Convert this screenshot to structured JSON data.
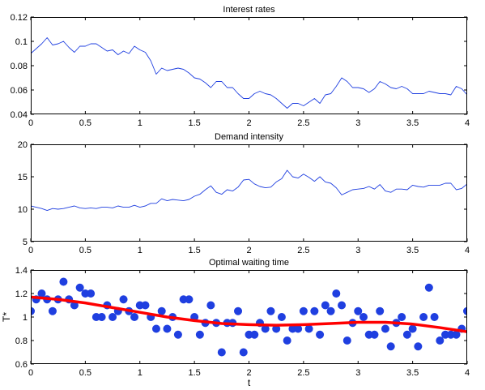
{
  "chart_data": [
    {
      "type": "line",
      "title": "Interest rates",
      "xlabel": "",
      "ylabel": "",
      "xlim": [
        0,
        4
      ],
      "ylim": [
        0.04,
        0.12
      ],
      "xticks": [
        "0",
        "0.5",
        "1",
        "1.5",
        "2",
        "2.5",
        "3",
        "3.5",
        "4"
      ],
      "yticks": [
        "0.04",
        "0.06",
        "0.08",
        "0.1",
        "0.12"
      ],
      "grid": false,
      "series": [
        {
          "color": "#1f3fe0",
          "x": [
            0,
            0.05,
            0.1,
            0.15,
            0.2,
            0.25,
            0.3,
            0.35,
            0.4,
            0.45,
            0.5,
            0.55,
            0.6,
            0.65,
            0.7,
            0.75,
            0.8,
            0.85,
            0.9,
            0.95,
            1.0,
            1.05,
            1.1,
            1.15,
            1.2,
            1.25,
            1.3,
            1.35,
            1.4,
            1.45,
            1.5,
            1.55,
            1.6,
            1.65,
            1.7,
            1.75,
            1.8,
            1.85,
            1.9,
            1.95,
            2.0,
            2.05,
            2.1,
            2.15,
            2.2,
            2.25,
            2.3,
            2.35,
            2.4,
            2.45,
            2.5,
            2.55,
            2.6,
            2.65,
            2.7,
            2.75,
            2.8,
            2.85,
            2.9,
            2.95,
            3.0,
            3.05,
            3.1,
            3.15,
            3.2,
            3.25,
            3.3,
            3.35,
            3.4,
            3.45,
            3.5,
            3.55,
            3.6,
            3.65,
            3.7,
            3.75,
            3.8,
            3.85,
            3.9,
            3.95,
            4.0
          ],
          "y": [
            0.09,
            0.094,
            0.098,
            0.103,
            0.097,
            0.098,
            0.1,
            0.095,
            0.091,
            0.096,
            0.096,
            0.098,
            0.098,
            0.095,
            0.092,
            0.093,
            0.089,
            0.092,
            0.09,
            0.096,
            0.093,
            0.091,
            0.084,
            0.073,
            0.078,
            0.076,
            0.077,
            0.078,
            0.077,
            0.074,
            0.07,
            0.069,
            0.066,
            0.062,
            0.067,
            0.067,
            0.062,
            0.062,
            0.057,
            0.053,
            0.053,
            0.057,
            0.059,
            0.057,
            0.056,
            0.053,
            0.049,
            0.045,
            0.049,
            0.049,
            0.047,
            0.05,
            0.053,
            0.049,
            0.056,
            0.057,
            0.063,
            0.07,
            0.067,
            0.062,
            0.062,
            0.061,
            0.058,
            0.061,
            0.067,
            0.065,
            0.062,
            0.061,
            0.063,
            0.061,
            0.057,
            0.057,
            0.057,
            0.059,
            0.058,
            0.057,
            0.057,
            0.056,
            0.063,
            0.061,
            0.056
          ]
        }
      ]
    },
    {
      "type": "line",
      "title": "Demand intensity",
      "xlabel": "",
      "ylabel": "",
      "xlim": [
        0,
        4
      ],
      "ylim": [
        5,
        20
      ],
      "xticks": [
        "0",
        "0.5",
        "1",
        "1.5",
        "2",
        "2.5",
        "3",
        "3.5",
        "4"
      ],
      "yticks": [
        "5",
        "10",
        "15",
        "20"
      ],
      "grid": false,
      "series": [
        {
          "color": "#1f3fe0",
          "x": [
            0,
            0.05,
            0.1,
            0.15,
            0.2,
            0.25,
            0.3,
            0.35,
            0.4,
            0.45,
            0.5,
            0.55,
            0.6,
            0.65,
            0.7,
            0.75,
            0.8,
            0.85,
            0.9,
            0.95,
            1.0,
            1.05,
            1.1,
            1.15,
            1.2,
            1.25,
            1.3,
            1.35,
            1.4,
            1.45,
            1.5,
            1.55,
            1.6,
            1.65,
            1.7,
            1.75,
            1.8,
            1.85,
            1.9,
            1.95,
            2.0,
            2.05,
            2.1,
            2.15,
            2.2,
            2.25,
            2.3,
            2.35,
            2.4,
            2.45,
            2.5,
            2.55,
            2.6,
            2.65,
            2.7,
            2.75,
            2.8,
            2.85,
            2.9,
            2.95,
            3.0,
            3.05,
            3.1,
            3.15,
            3.2,
            3.25,
            3.3,
            3.35,
            3.4,
            3.45,
            3.5,
            3.55,
            3.6,
            3.65,
            3.7,
            3.75,
            3.8,
            3.85,
            3.9,
            3.95,
            4.0
          ],
          "y": [
            10.5,
            10.3,
            10.1,
            9.8,
            10.1,
            10.0,
            10.1,
            10.3,
            10.5,
            10.2,
            10.1,
            10.2,
            10.1,
            10.3,
            10.3,
            10.2,
            10.5,
            10.3,
            10.3,
            10.6,
            10.3,
            10.5,
            10.9,
            10.9,
            11.6,
            11.3,
            11.5,
            11.4,
            11.3,
            11.5,
            12.0,
            12.3,
            13.0,
            13.6,
            12.6,
            12.3,
            13.0,
            12.8,
            13.4,
            14.5,
            14.6,
            13.9,
            13.5,
            13.3,
            13.4,
            14.2,
            14.7,
            16.0,
            15.0,
            14.8,
            15.4,
            14.9,
            14.3,
            15.0,
            14.2,
            14.0,
            13.3,
            12.2,
            12.6,
            13.0,
            13.1,
            13.2,
            13.5,
            13.1,
            13.8,
            12.8,
            12.6,
            13.1,
            13.1,
            13.0,
            13.7,
            13.5,
            13.4,
            13.7,
            13.7,
            13.7,
            14.0,
            14.0,
            13.0,
            13.2,
            13.9
          ]
        }
      ]
    },
    {
      "type": "scatter",
      "title": "Optimal waiting time",
      "xlabel": "t",
      "ylabel": "T*",
      "xlim": [
        0,
        4
      ],
      "ylim": [
        0.6,
        1.4
      ],
      "xticks": [
        "0",
        "0.5",
        "1",
        "1.5",
        "2",
        "2.5",
        "3",
        "3.5",
        "4"
      ],
      "yticks": [
        "0.6",
        "0.8",
        "1",
        "1.2",
        "1.4"
      ],
      "grid": false,
      "series": [
        {
          "kind": "points",
          "color": "#1f3fe0",
          "x": [
            0,
            0.05,
            0.1,
            0.15,
            0.2,
            0.25,
            0.3,
            0.35,
            0.4,
            0.45,
            0.5,
            0.55,
            0.6,
            0.65,
            0.7,
            0.75,
            0.8,
            0.85,
            0.9,
            0.95,
            1.0,
            1.05,
            1.1,
            1.15,
            1.2,
            1.25,
            1.3,
            1.35,
            1.4,
            1.45,
            1.5,
            1.55,
            1.6,
            1.65,
            1.7,
            1.75,
            1.8,
            1.85,
            1.9,
            1.95,
            2.0,
            2.05,
            2.1,
            2.15,
            2.2,
            2.25,
            2.3,
            2.35,
            2.4,
            2.45,
            2.5,
            2.55,
            2.6,
            2.65,
            2.7,
            2.75,
            2.8,
            2.85,
            2.9,
            2.95,
            3.0,
            3.05,
            3.1,
            3.15,
            3.2,
            3.25,
            3.3,
            3.35,
            3.4,
            3.45,
            3.5,
            3.55,
            3.6,
            3.65,
            3.7,
            3.75,
            3.8,
            3.85,
            3.9,
            3.95,
            4.0
          ],
          "y": [
            1.05,
            1.15,
            1.2,
            1.15,
            1.05,
            1.15,
            1.3,
            1.15,
            1.1,
            1.25,
            1.2,
            1.2,
            1.0,
            1.0,
            1.1,
            1.0,
            1.05,
            1.15,
            1.05,
            1.0,
            1.1,
            1.1,
            1.0,
            0.9,
            1.05,
            0.9,
            1.0,
            0.85,
            1.15,
            1.15,
            1.0,
            0.85,
            0.95,
            1.1,
            0.95,
            0.7,
            0.95,
            0.95,
            1.05,
            0.7,
            0.85,
            0.85,
            0.95,
            0.9,
            1.05,
            0.9,
            1.0,
            0.8,
            0.9,
            0.9,
            1.05,
            0.9,
            1.05,
            0.85,
            1.1,
            1.05,
            1.2,
            1.1,
            0.8,
            0.95,
            1.05,
            1.0,
            0.85,
            0.85,
            1.05,
            0.9,
            0.75,
            0.95,
            1.0,
            0.85,
            0.9,
            0.75,
            1.0,
            1.25,
            1.0,
            0.8,
            0.85,
            0.85,
            0.85,
            0.9,
            1.05
          ]
        },
        {
          "kind": "line",
          "color": "#ff0000",
          "x": [
            0,
            0.25,
            0.5,
            0.75,
            1.0,
            1.25,
            1.5,
            1.75,
            2.0,
            2.25,
            2.5,
            2.75,
            3.0,
            3.25,
            3.5,
            3.75,
            4.0
          ],
          "y": [
            1.17,
            1.15,
            1.12,
            1.08,
            1.04,
            1.0,
            0.97,
            0.945,
            0.935,
            0.93,
            0.935,
            0.945,
            0.955,
            0.955,
            0.94,
            0.91,
            0.875
          ]
        }
      ]
    }
  ]
}
